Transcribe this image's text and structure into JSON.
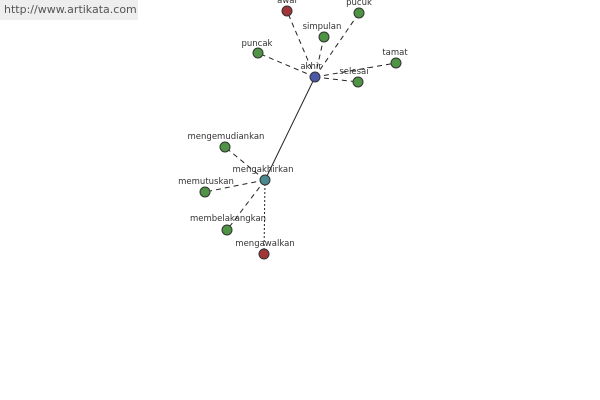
{
  "watermark": "http://www.artikata.com",
  "nodes": [
    {
      "label": "awal"
    },
    {
      "label": "pucuk"
    },
    {
      "label": "simpulan"
    },
    {
      "label": "puncak"
    },
    {
      "label": "tamat"
    },
    {
      "label": "akhir"
    },
    {
      "label": "selesai"
    },
    {
      "label": "mengemudiankan"
    },
    {
      "label": "mengakhirkan"
    },
    {
      "label": "memutuskan"
    },
    {
      "label": "membelakangkan"
    },
    {
      "label": "mengawalkan"
    }
  ]
}
